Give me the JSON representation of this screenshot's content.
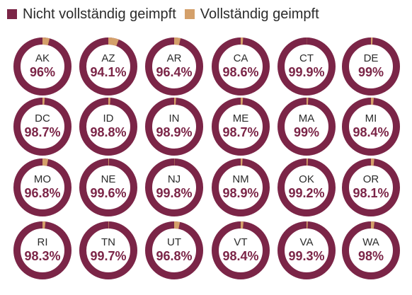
{
  "chart_data": {
    "type": "pie",
    "legend": [
      {
        "name": "Nicht vollständig geimpft",
        "color": "#7b2547"
      },
      {
        "name": "Vollständig geimpft",
        "color": "#d4a06a"
      }
    ],
    "legend_placement": "top-left",
    "colors": {
      "primary": "#7b2547",
      "secondary": "#d4a06a",
      "value_text": "#7b2547"
    },
    "items": [
      {
        "label": "AK",
        "value_label": "96%",
        "value": 96
      },
      {
        "label": "AZ",
        "value_label": "94.1%",
        "value": 94.1
      },
      {
        "label": "AR",
        "value_label": "96.4%",
        "value": 96.4
      },
      {
        "label": "CA",
        "value_label": "98.6%",
        "value": 98.6
      },
      {
        "label": "CT",
        "value_label": "99.9%",
        "value": 99.9
      },
      {
        "label": "DE",
        "value_label": "99%",
        "value": 99
      },
      {
        "label": "DC",
        "value_label": "98.7%",
        "value": 98.7
      },
      {
        "label": "ID",
        "value_label": "98.8%",
        "value": 98.8
      },
      {
        "label": "IN",
        "value_label": "98.9%",
        "value": 98.9
      },
      {
        "label": "ME",
        "value_label": "98.7%",
        "value": 98.7
      },
      {
        "label": "MA",
        "value_label": "99%",
        "value": 99
      },
      {
        "label": "MI",
        "value_label": "98.4%",
        "value": 98.4
      },
      {
        "label": "MO",
        "value_label": "96.8%",
        "value": 96.8
      },
      {
        "label": "NE",
        "value_label": "99.6%",
        "value": 99.6
      },
      {
        "label": "NJ",
        "value_label": "99.8%",
        "value": 99.8
      },
      {
        "label": "NM",
        "value_label": "98.9%",
        "value": 98.9
      },
      {
        "label": "OK",
        "value_label": "99.2%",
        "value": 99.2
      },
      {
        "label": "OR",
        "value_label": "98.1%",
        "value": 98.1
      },
      {
        "label": "RI",
        "value_label": "98.3%",
        "value": 98.3
      },
      {
        "label": "TN",
        "value_label": "99.7%",
        "value": 99.7
      },
      {
        "label": "UT",
        "value_label": "96.8%",
        "value": 96.8
      },
      {
        "label": "VT",
        "value_label": "98.4%",
        "value": 98.4
      },
      {
        "label": "VA",
        "value_label": "99.3%",
        "value": 99.3
      },
      {
        "label": "WA",
        "value_label": "98%",
        "value": 98
      }
    ]
  }
}
